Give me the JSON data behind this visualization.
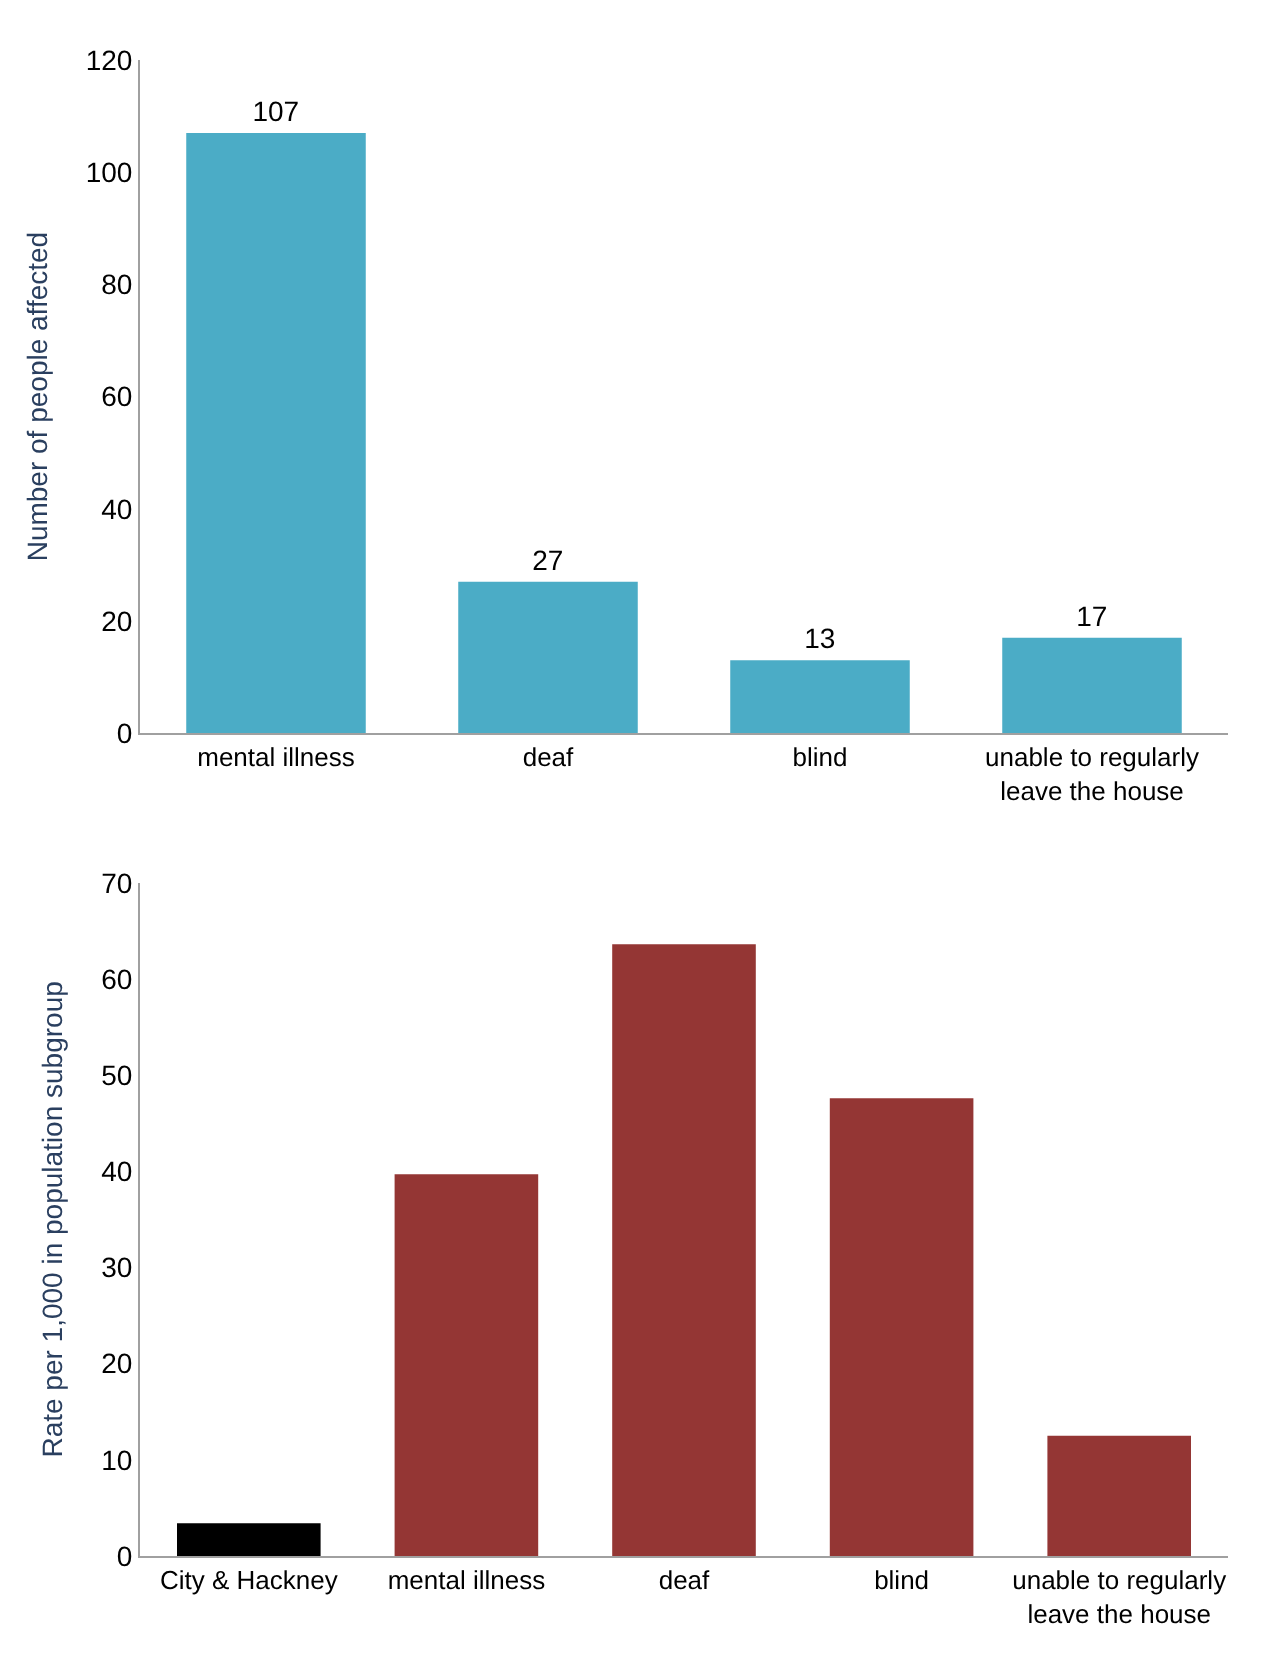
{
  "chart_data": [
    {
      "type": "bar",
      "categories": [
        "mental illness",
        "deaf",
        "blind",
        "unable to regularly leave the house"
      ],
      "values": [
        107,
        27,
        13,
        17
      ],
      "color": "#4bacc6",
      "ylabel": "Number of people affected",
      "ylim": [
        0,
        120
      ],
      "yticks": [
        0,
        20,
        40,
        60,
        80,
        100,
        120
      ],
      "data_labels": true,
      "grid": false,
      "legend": false
    },
    {
      "type": "bar",
      "categories": [
        "City & Hackney",
        "mental illness",
        "deaf",
        "blind",
        "unable to regularly leave the house"
      ],
      "values": [
        3.4,
        39.7,
        63.6,
        47.6,
        12.5
      ],
      "colors": [
        "#000000",
        "#943634",
        "#943634",
        "#943634",
        "#943634"
      ],
      "ylabel": "Rate per 1,000 in population subgroup",
      "ylim": [
        0,
        70
      ],
      "yticks": [
        0,
        10,
        20,
        30,
        40,
        50,
        60,
        70
      ],
      "grid": false,
      "legend": false
    }
  ]
}
